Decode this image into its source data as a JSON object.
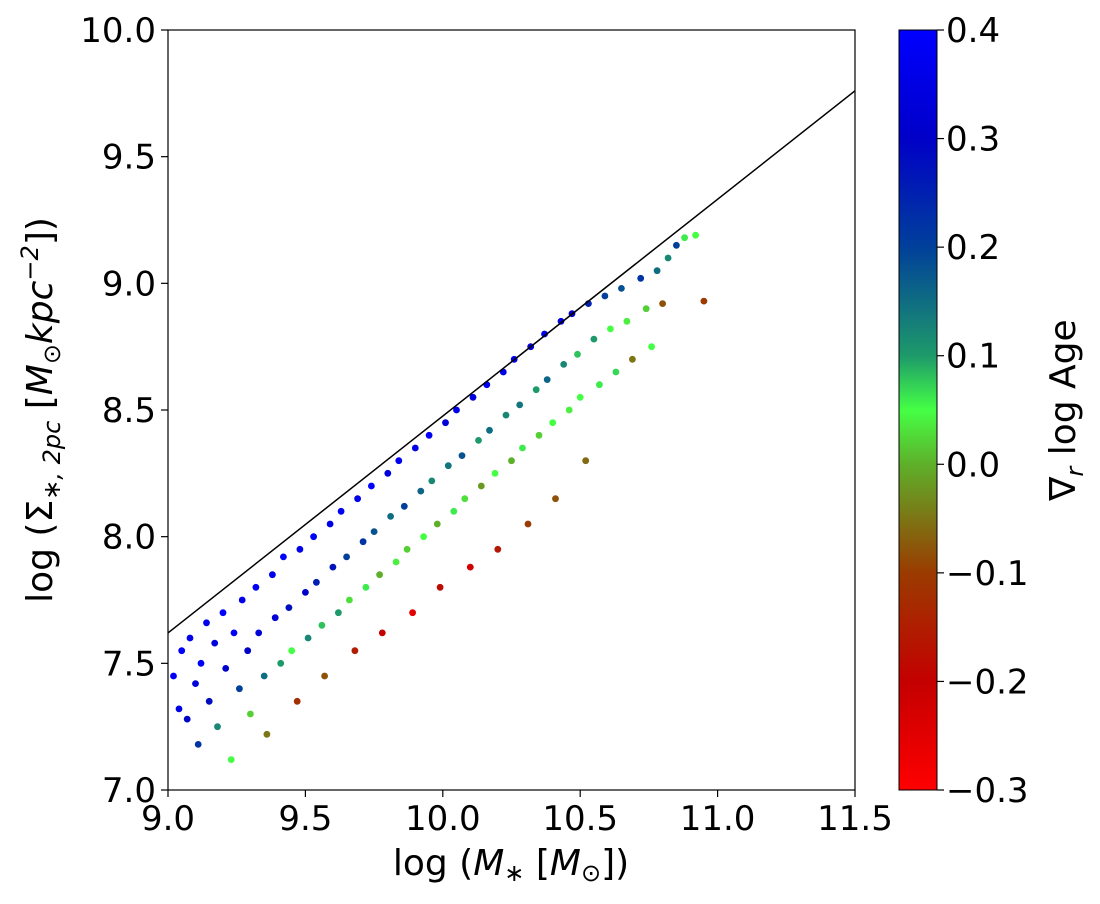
{
  "chart_data": {
    "type": "scatter",
    "title": "",
    "xlabel": "log (M∗ [M⊙])",
    "ylabel": "log (Σ∗,2pc [M⊙ kpc⁻²])",
    "xlim": [
      9.0,
      11.5
    ],
    "ylim": [
      7.0,
      10.0
    ],
    "x_ticks": [
      "9.0",
      "9.5",
      "10.0",
      "10.5",
      "11.0",
      "11.5"
    ],
    "y_ticks": [
      "7.0",
      "7.5",
      "8.0",
      "8.5",
      "9.0",
      "9.5",
      "10.0"
    ],
    "grid": false,
    "fit_line": {
      "x": [
        9.0,
        11.5
      ],
      "y": [
        7.62,
        9.76
      ],
      "color": "#000000"
    },
    "colorbar": {
      "label": "∇r log Age",
      "range": [
        -0.3,
        0.4
      ],
      "ticks": [
        "0.4",
        "0.3",
        "0.2",
        "0.1",
        "0.0",
        "−0.1",
        "−0.2",
        "−0.3"
      ],
      "colormap": [
        [
          -0.3,
          "#ff0000"
        ],
        [
          -0.2,
          "#c40000"
        ],
        [
          -0.1,
          "#9a3b00"
        ],
        [
          0.0,
          "#5eb02a"
        ],
        [
          0.05,
          "#45ff45"
        ],
        [
          0.1,
          "#1e9a6a"
        ],
        [
          0.2,
          "#00409a"
        ],
        [
          0.3,
          "#0000c8"
        ],
        [
          0.4,
          "#0000ff"
        ]
      ]
    },
    "points_note_visible": "",
    "points": [
      [
        9.02,
        7.45,
        0.38
      ],
      [
        9.04,
        7.32,
        0.35
      ],
      [
        9.05,
        7.55,
        0.4
      ],
      [
        9.07,
        7.28,
        0.3
      ],
      [
        9.08,
        7.6,
        0.36
      ],
      [
        9.1,
        7.42,
        0.33
      ],
      [
        9.11,
        7.18,
        0.22
      ],
      [
        9.12,
        7.5,
        0.39
      ],
      [
        9.14,
        7.66,
        0.37
      ],
      [
        9.15,
        7.35,
        0.28
      ],
      [
        9.17,
        7.58,
        0.34
      ],
      [
        9.18,
        7.25,
        0.12
      ],
      [
        9.2,
        7.7,
        0.4
      ],
      [
        9.21,
        7.48,
        0.31
      ],
      [
        9.23,
        7.12,
        0.05
      ],
      [
        9.24,
        7.62,
        0.38
      ],
      [
        9.26,
        7.4,
        0.2
      ],
      [
        9.27,
        7.75,
        0.36
      ],
      [
        9.29,
        7.55,
        0.3
      ],
      [
        9.3,
        7.3,
        0.02
      ],
      [
        9.32,
        7.8,
        0.39
      ],
      [
        9.33,
        7.62,
        0.33
      ],
      [
        9.35,
        7.45,
        0.15
      ],
      [
        9.36,
        7.22,
        -0.05
      ],
      [
        9.38,
        7.85,
        0.37
      ],
      [
        9.39,
        7.68,
        0.32
      ],
      [
        9.41,
        7.5,
        0.1
      ],
      [
        9.42,
        7.92,
        0.4
      ],
      [
        9.44,
        7.72,
        0.28
      ],
      [
        9.45,
        7.55,
        0.05
      ],
      [
        9.47,
        7.35,
        -0.12
      ],
      [
        9.48,
        7.95,
        0.36
      ],
      [
        9.5,
        7.78,
        0.3
      ],
      [
        9.51,
        7.6,
        0.12
      ],
      [
        9.53,
        8.0,
        0.39
      ],
      [
        9.54,
        7.82,
        0.25
      ],
      [
        9.56,
        7.65,
        0.08
      ],
      [
        9.57,
        7.45,
        -0.08
      ],
      [
        9.59,
        8.05,
        0.35
      ],
      [
        9.6,
        7.88,
        0.27
      ],
      [
        9.62,
        7.7,
        0.1
      ],
      [
        9.63,
        8.1,
        0.38
      ],
      [
        9.65,
        7.92,
        0.2
      ],
      [
        9.66,
        7.75,
        0.03
      ],
      [
        9.68,
        7.55,
        -0.15
      ],
      [
        9.69,
        8.15,
        0.36
      ],
      [
        9.71,
        7.98,
        0.22
      ],
      [
        9.72,
        7.8,
        0.06
      ],
      [
        9.74,
        8.2,
        0.4
      ],
      [
        9.75,
        8.02,
        0.18
      ],
      [
        9.77,
        7.85,
        0.0
      ],
      [
        9.78,
        7.62,
        -0.2
      ],
      [
        9.8,
        8.25,
        0.34
      ],
      [
        9.81,
        8.08,
        0.15
      ],
      [
        9.83,
        7.9,
        0.04
      ],
      [
        9.84,
        8.3,
        0.37
      ],
      [
        9.86,
        8.12,
        0.2
      ],
      [
        9.87,
        7.95,
        0.02
      ],
      [
        9.89,
        7.7,
        -0.25
      ],
      [
        9.9,
        8.35,
        0.35
      ],
      [
        9.92,
        8.18,
        0.16
      ],
      [
        9.93,
        8.0,
        0.05
      ],
      [
        9.95,
        8.4,
        0.39
      ],
      [
        9.96,
        8.22,
        0.12
      ],
      [
        9.98,
        8.05,
        0.0
      ],
      [
        9.99,
        7.8,
        -0.18
      ],
      [
        10.01,
        8.45,
        0.33
      ],
      [
        10.02,
        8.28,
        0.14
      ],
      [
        10.04,
        8.1,
        0.06
      ],
      [
        10.05,
        8.5,
        0.36
      ],
      [
        10.07,
        8.32,
        0.18
      ],
      [
        10.08,
        8.15,
        0.03
      ],
      [
        10.1,
        7.88,
        -0.22
      ],
      [
        10.11,
        8.55,
        0.34
      ],
      [
        10.13,
        8.38,
        0.1
      ],
      [
        10.14,
        8.2,
        -0.02
      ],
      [
        10.16,
        8.6,
        0.38
      ],
      [
        10.17,
        8.42,
        0.15
      ],
      [
        10.19,
        8.25,
        0.05
      ],
      [
        10.2,
        7.95,
        -0.16
      ],
      [
        10.22,
        8.65,
        0.35
      ],
      [
        10.23,
        8.48,
        0.12
      ],
      [
        10.25,
        8.3,
        0.0
      ],
      [
        10.26,
        8.7,
        0.37
      ],
      [
        10.28,
        8.52,
        0.14
      ],
      [
        10.29,
        8.35,
        0.06
      ],
      [
        10.31,
        8.05,
        -0.1
      ],
      [
        10.32,
        8.75,
        0.33
      ],
      [
        10.34,
        8.58,
        0.1
      ],
      [
        10.35,
        8.4,
        0.02
      ],
      [
        10.37,
        8.8,
        0.36
      ],
      [
        10.38,
        8.62,
        0.16
      ],
      [
        10.4,
        8.45,
        0.05
      ],
      [
        10.41,
        8.15,
        -0.08
      ],
      [
        10.43,
        8.85,
        0.34
      ],
      [
        10.44,
        8.68,
        0.12
      ],
      [
        10.46,
        8.5,
        0.04
      ],
      [
        10.47,
        8.88,
        0.3
      ],
      [
        10.49,
        8.72,
        0.08
      ],
      [
        10.5,
        8.55,
        0.05
      ],
      [
        10.52,
        8.3,
        -0.06
      ],
      [
        10.53,
        8.92,
        0.25
      ],
      [
        10.55,
        8.78,
        0.1
      ],
      [
        10.57,
        8.6,
        0.06
      ],
      [
        10.59,
        8.95,
        0.2
      ],
      [
        10.61,
        8.82,
        0.05
      ],
      [
        10.63,
        8.65,
        0.07
      ],
      [
        10.65,
        8.98,
        0.18
      ],
      [
        10.67,
        8.85,
        0.04
      ],
      [
        10.69,
        8.7,
        -0.05
      ],
      [
        10.72,
        9.02,
        0.22
      ],
      [
        10.74,
        8.9,
        0.02
      ],
      [
        10.76,
        8.75,
        0.05
      ],
      [
        10.78,
        9.05,
        0.15
      ],
      [
        10.8,
        8.92,
        -0.08
      ],
      [
        10.82,
        9.1,
        0.12
      ],
      [
        10.85,
        9.15,
        0.2
      ],
      [
        10.88,
        9.18,
        0.06
      ],
      [
        10.92,
        9.19,
        0.05
      ],
      [
        10.95,
        8.93,
        -0.1
      ]
    ]
  }
}
